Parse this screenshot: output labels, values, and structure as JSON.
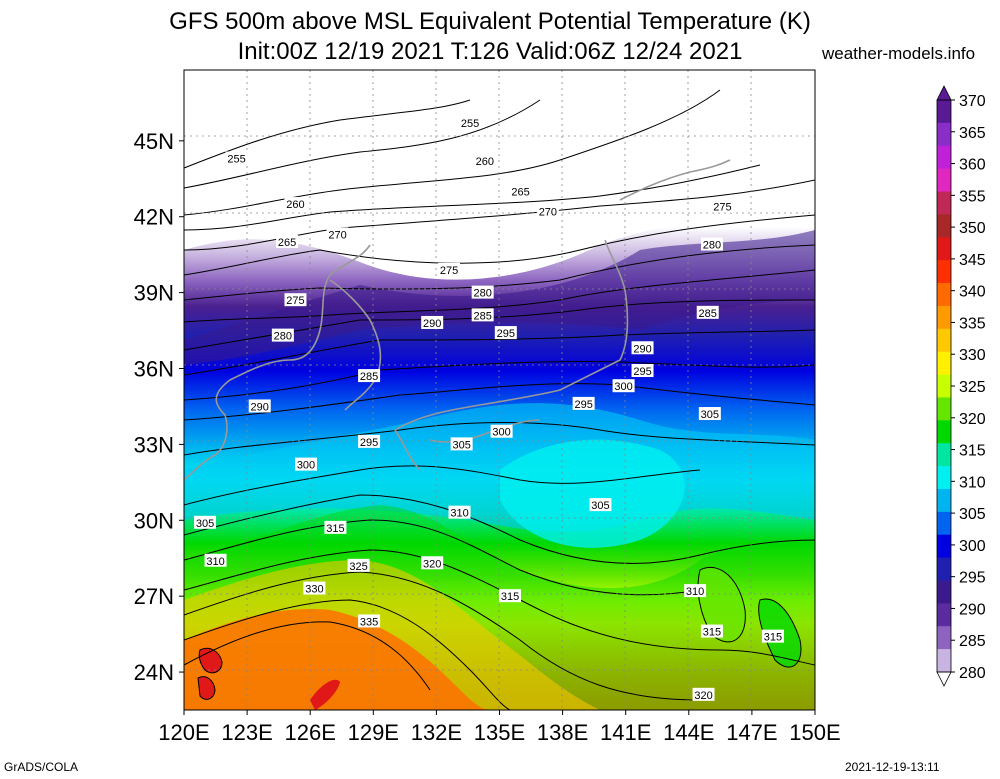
{
  "title_line1": "GFS 500m above MSL Equivalent Potential Temperature (K)",
  "title_line2": "Init:00Z 12/19 2021 T:126 Valid:06Z 12/24 2021",
  "site": "weather-models.info",
  "footer_left": "GrADS/COLA",
  "footer_right": "2021-12-19-13:11",
  "lat_labels": [
    "45N",
    "42N",
    "39N",
    "36N",
    "33N",
    "30N",
    "27N",
    "24N"
  ],
  "lon_labels": [
    "120E",
    "123E",
    "126E",
    "129E",
    "132E",
    "135E",
    "138E",
    "141E",
    "144E",
    "147E",
    "150E"
  ],
  "colorbar": {
    "labels": [
      "370",
      "365",
      "360",
      "355",
      "350",
      "345",
      "340",
      "335",
      "330",
      "325",
      "320",
      "315",
      "310",
      "305",
      "300",
      "295",
      "290",
      "285",
      "280"
    ],
    "colors": [
      "#5a1a96",
      "#8a2ec8",
      "#c020d8",
      "#e028c0",
      "#c02858",
      "#a82828",
      "#e01818",
      "#ff3000",
      "#ff6a00",
      "#ff9a00",
      "#ffc800",
      "#fff000",
      "#c8ff00",
      "#64e600",
      "#00d800",
      "#00e6a0",
      "#00f0f0",
      "#00b4f0",
      "#0064f0",
      "#0000e0",
      "#2020b0",
      "#3a1a8c",
      "#5a2ca0",
      "#8c64c0",
      "#c8b4e0"
    ]
  },
  "contour_labels": [
    {
      "text": "255",
      "lon": 122.5,
      "lat": 44.3
    },
    {
      "text": "255",
      "lon": 133.6,
      "lat": 45.7
    },
    {
      "text": "260",
      "lon": 125.3,
      "lat": 42.5
    },
    {
      "text": "260",
      "lon": 134.3,
      "lat": 44.2
    },
    {
      "text": "265",
      "lon": 124.9,
      "lat": 41.0
    },
    {
      "text": "265",
      "lon": 136.0,
      "lat": 43.0
    },
    {
      "text": "270",
      "lon": 127.3,
      "lat": 41.3
    },
    {
      "text": "270",
      "lon": 137.3,
      "lat": 42.2
    },
    {
      "text": "275",
      "lon": 145.6,
      "lat": 42.4
    },
    {
      "text": "275",
      "lon": 132.6,
      "lat": 39.9
    },
    {
      "text": "275",
      "lon": 125.3,
      "lat": 38.7
    },
    {
      "text": "280",
      "lon": 124.7,
      "lat": 37.3
    },
    {
      "text": "280",
      "lon": 134.2,
      "lat": 39.0
    },
    {
      "text": "280",
      "lon": 145.1,
      "lat": 40.9
    },
    {
      "text": "285",
      "lon": 134.2,
      "lat": 38.1
    },
    {
      "text": "285",
      "lon": 128.8,
      "lat": 35.7
    },
    {
      "text": "285",
      "lon": 144.9,
      "lat": 38.2
    },
    {
      "text": "290",
      "lon": 131.8,
      "lat": 37.8
    },
    {
      "text": "290",
      "lon": 141.8,
      "lat": 36.8
    },
    {
      "text": "290",
      "lon": 123.6,
      "lat": 34.5
    },
    {
      "text": "295",
      "lon": 135.3,
      "lat": 37.4
    },
    {
      "text": "295",
      "lon": 141.8,
      "lat": 35.9
    },
    {
      "text": "295",
      "lon": 139.0,
      "lat": 34.6
    },
    {
      "text": "295",
      "lon": 128.8,
      "lat": 33.1
    },
    {
      "text": "300",
      "lon": 140.9,
      "lat": 35.3
    },
    {
      "text": "300",
      "lon": 135.1,
      "lat": 33.5
    },
    {
      "text": "300",
      "lon": 125.8,
      "lat": 32.2
    },
    {
      "text": "305",
      "lon": 145.0,
      "lat": 34.2
    },
    {
      "text": "305",
      "lon": 133.2,
      "lat": 33.0
    },
    {
      "text": "305",
      "lon": 139.8,
      "lat": 30.6
    },
    {
      "text": "305",
      "lon": 121.0,
      "lat": 29.9
    },
    {
      "text": "310",
      "lon": 133.1,
      "lat": 30.3
    },
    {
      "text": "310",
      "lon": 121.5,
      "lat": 28.4
    },
    {
      "text": "310",
      "lon": 144.3,
      "lat": 27.2
    },
    {
      "text": "315",
      "lon": 127.2,
      "lat": 29.7
    },
    {
      "text": "315",
      "lon": 135.5,
      "lat": 27.0
    },
    {
      "text": "315",
      "lon": 145.1,
      "lat": 25.6
    },
    {
      "text": "315",
      "lon": 148.0,
      "lat": 25.4
    },
    {
      "text": "320",
      "lon": 131.8,
      "lat": 28.3
    },
    {
      "text": "320",
      "lon": 144.7,
      "lat": 23.1
    },
    {
      "text": "325",
      "lon": 128.3,
      "lat": 28.2
    },
    {
      "text": "330",
      "lon": 126.2,
      "lat": 27.3
    },
    {
      "text": "335",
      "lon": 128.8,
      "lat": 26.0
    }
  ]
}
